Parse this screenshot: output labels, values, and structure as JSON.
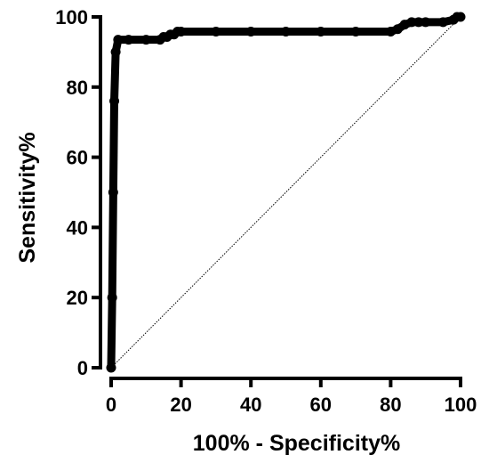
{
  "chart_data": {
    "type": "line",
    "title": "",
    "xlabel": "100% - Specificity%",
    "ylabel": "Sensitivity%",
    "xlim": [
      0,
      100
    ],
    "ylim": [
      0,
      100
    ],
    "x_ticks": [
      0,
      20,
      40,
      60,
      80,
      100
    ],
    "y_ticks": [
      0,
      20,
      40,
      60,
      80,
      100
    ],
    "grid": false,
    "legend": "none",
    "colors": {
      "curve": "#000000",
      "reference": "#000000",
      "axes": "#000000"
    },
    "series": [
      {
        "style": "roc-curve",
        "x": [
          0,
          0.3,
          0.6,
          0.9,
          1.3,
          2,
          5,
          10,
          14,
          15,
          16,
          17,
          18,
          19,
          20,
          30,
          40,
          50,
          60,
          70,
          80,
          82,
          84,
          86,
          88,
          90,
          95,
          98,
          99,
          100
        ],
        "y": [
          0,
          20,
          50,
          76,
          90,
          93.5,
          93.5,
          93.5,
          93.5,
          94.3,
          94.3,
          95,
          95,
          95.8,
          95.8,
          95.8,
          95.8,
          95.8,
          95.8,
          95.8,
          95.8,
          96.5,
          97.8,
          98.5,
          98.5,
          98.5,
          98.5,
          99.2,
          100,
          100
        ]
      },
      {
        "style": "reference-line",
        "x": [
          0,
          100
        ],
        "y": [
          0,
          100
        ]
      }
    ]
  }
}
